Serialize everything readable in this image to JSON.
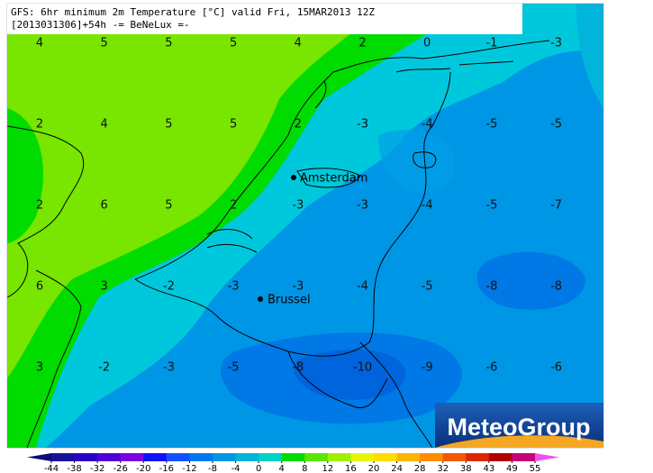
{
  "header": {
    "line1": "GFS: 6hr minimum 2m Temperature [°C] valid Fri, 15MAR2013 12Z",
    "line2": "[2013031306]+54h -= BeNeLux =-"
  },
  "grid_values": [
    [
      4,
      5,
      5,
      5,
      4,
      2,
      0,
      -1,
      -3
    ],
    [
      2,
      4,
      5,
      5,
      2,
      -3,
      -4,
      -5,
      -5
    ],
    [
      2,
      6,
      5,
      2,
      -3,
      -3,
      -4,
      -5,
      -7
    ],
    [
      6,
      3,
      -2,
      -3,
      -3,
      -4,
      -5,
      -8,
      -8
    ],
    [
      3,
      -2,
      -3,
      -5,
      -8,
      -10,
      -9,
      -6,
      -6
    ]
  ],
  "cities": [
    "Amsterdam",
    "Brussel"
  ],
  "logo": "MeteoGroup",
  "colorbar": {
    "labels": [
      -44,
      -38,
      -32,
      -26,
      -20,
      -16,
      -12,
      -8,
      -4,
      0,
      4,
      8,
      12,
      16,
      20,
      24,
      28,
      32,
      38,
      43,
      49,
      55
    ],
    "colors": [
      "#0a0a78",
      "#14149b",
      "#2a00c4",
      "#5000d8",
      "#7a00e4",
      "#1010ff",
      "#1450ff",
      "#0078f0",
      "#0096e6",
      "#00b4dc",
      "#00d2c8",
      "#00dc00",
      "#5ae600",
      "#a0f000",
      "#e6f500",
      "#ffdc00",
      "#ffb400",
      "#ff8c00",
      "#f05a00",
      "#dc2800",
      "#b40000",
      "#c80078",
      "#f050f0"
    ]
  }
}
